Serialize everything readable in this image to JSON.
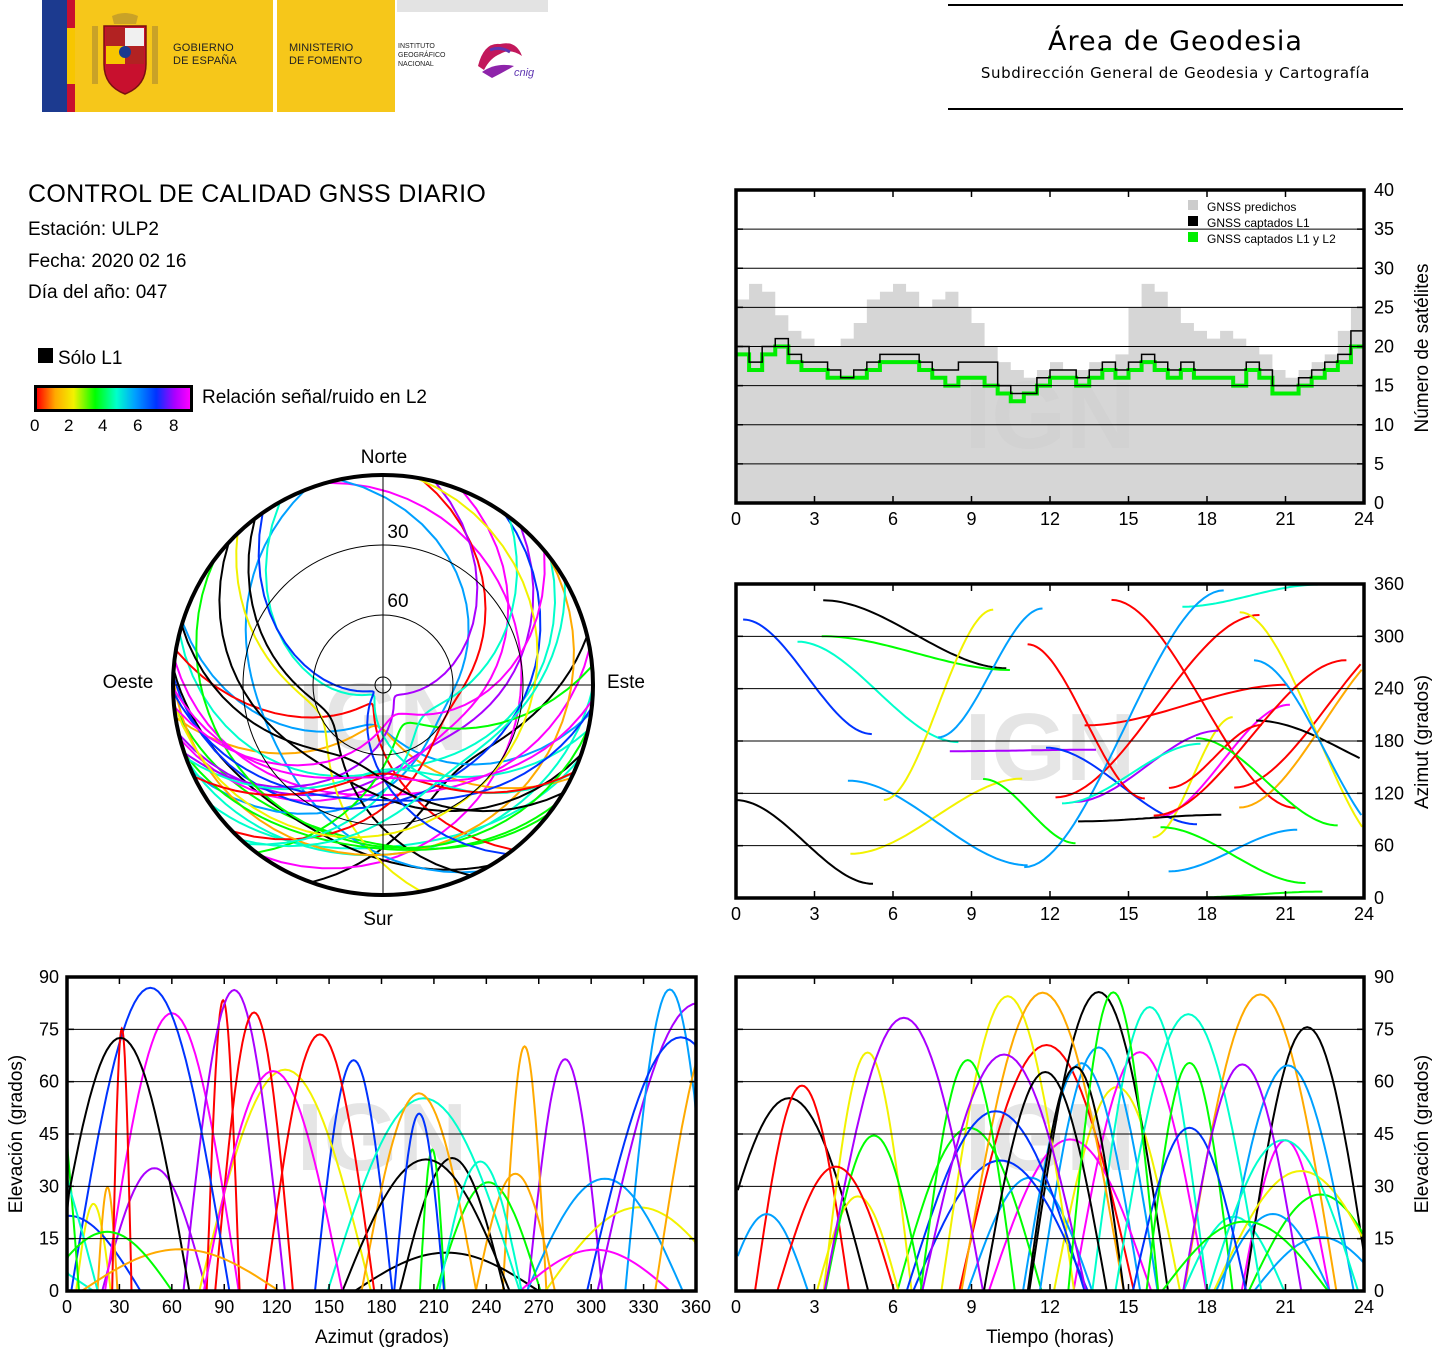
{
  "header": {
    "gov_line1": "GOBIERNO",
    "gov_line2": "DE ESPAÑA",
    "min_line1": "MINISTERIO",
    "min_line2": "DE FOMENTO",
    "ign_line1": "INSTITUTO",
    "ign_line2": "GEOGRÁFICO",
    "ign_line3": "NACIONAL",
    "cnig_logo_text": "cnig",
    "area_title": "Área de Geodesia",
    "area_subtitle": "Subdirección General de Geodesia y Cartografía"
  },
  "report": {
    "title": "CONTROL DE CALIDAD GNSS DIARIO",
    "station": "Estación: ULP2",
    "date": "Fecha: 2020 02 16",
    "doy": "Día del año: 047"
  },
  "legend": {
    "l1_only_label": "Sólo L1",
    "l1_only_color": "#000000",
    "snr_label": "Relación señal/ruido en L2",
    "snr_ticks": [
      "0",
      "2",
      "4",
      "6",
      "8"
    ],
    "snr_scale_colors": [
      "#ff0000",
      "#ffaa00",
      "#f2f200",
      "#00ff00",
      "#00ffcc",
      "#00a0ff",
      "#0033ff",
      "#aa00ff",
      "#ff00ff"
    ]
  },
  "watermark": "IGN",
  "chart_data": [
    {
      "id": "satellites",
      "type": "area",
      "ylabel": "Número de satélites",
      "x_ticks": [
        "0",
        "3",
        "6",
        "9",
        "12",
        "15",
        "18",
        "21",
        "24"
      ],
      "y_ticks": [
        "0",
        "5",
        "10",
        "15",
        "20",
        "25",
        "30",
        "35",
        "40"
      ],
      "xlim": [
        0,
        24
      ],
      "ylim": [
        0,
        40
      ],
      "grid": true,
      "legend_position": "top-right",
      "legend": [
        {
          "label": "GNSS predichos",
          "color": "#cccccc"
        },
        {
          "label": "GNSS captados L1",
          "color": "#000000"
        },
        {
          "label": "GNSS captados L1 y L2",
          "color": "#00ee00"
        }
      ],
      "x": [
        0,
        0.5,
        1,
        1.5,
        2,
        2.5,
        3,
        3.5,
        4,
        4.5,
        5,
        5.5,
        6,
        6.5,
        7,
        7.5,
        8,
        8.5,
        9,
        9.5,
        10,
        10.5,
        11,
        11.5,
        12,
        12.5,
        13,
        13.5,
        14,
        14.5,
        15,
        15.5,
        16,
        16.5,
        17,
        17.5,
        18,
        18.5,
        19,
        19.5,
        20,
        20.5,
        21,
        21.5,
        22,
        22.5,
        23,
        23.5,
        24
      ],
      "series": [
        {
          "name": "GNSS predichos",
          "values": [
            26,
            28,
            27,
            24,
            22,
            21,
            20,
            20,
            21,
            23,
            26,
            27,
            28,
            27,
            25,
            26,
            27,
            25,
            23,
            20,
            18,
            17,
            16,
            17,
            18,
            17,
            17,
            18,
            18,
            19,
            25,
            28,
            27,
            25,
            23,
            22,
            21,
            22,
            21,
            20,
            19,
            17,
            16,
            17,
            18,
            19,
            22,
            25,
            23
          ]
        },
        {
          "name": "GNSS captados L1",
          "values": [
            20,
            18,
            20,
            21,
            19,
            18,
            18,
            17,
            16,
            17,
            18,
            19,
            19,
            19,
            18,
            17,
            17,
            18,
            18,
            18,
            15,
            14,
            14,
            16,
            17,
            17,
            16,
            17,
            18,
            17,
            18,
            19,
            18,
            17,
            18,
            17,
            17,
            17,
            17,
            18,
            17,
            15,
            15,
            16,
            17,
            18,
            19,
            22,
            21
          ]
        },
        {
          "name": "GNSS captados L1 y L2",
          "values": [
            19,
            17,
            19,
            20,
            18,
            17,
            17,
            16,
            16,
            16,
            17,
            18,
            18,
            18,
            17,
            16,
            15,
            16,
            16,
            15,
            14,
            13,
            14,
            15,
            16,
            16,
            15,
            16,
            17,
            16,
            17,
            18,
            17,
            16,
            17,
            16,
            16,
            16,
            15,
            17,
            16,
            14,
            14,
            15,
            16,
            17,
            18,
            20,
            20
          ]
        }
      ]
    },
    {
      "id": "azimuth_time",
      "type": "scatter",
      "ylabel": "Azimut (grados)",
      "x_ticks": [
        "0",
        "3",
        "6",
        "9",
        "12",
        "15",
        "18",
        "21",
        "24"
      ],
      "y_ticks": [
        "0",
        "60",
        "120",
        "180",
        "240",
        "300",
        "360"
      ],
      "xlim": [
        0,
        24
      ],
      "ylim": [
        0,
        360
      ],
      "grid": true
    },
    {
      "id": "skyplot",
      "type": "scatter",
      "directions": {
        "north": "Norte",
        "south": "Sur",
        "east": "Este",
        "west": "Oeste"
      },
      "ring_labels": [
        "30",
        "60"
      ]
    },
    {
      "id": "elevation_azimuth",
      "type": "scatter",
      "xlabel": "Azimut (grados)",
      "ylabel": "Elevación (grados)",
      "x_ticks": [
        "0",
        "30",
        "60",
        "90",
        "120",
        "150",
        "180",
        "210",
        "240",
        "270",
        "300",
        "330",
        "360"
      ],
      "y_ticks": [
        "0",
        "15",
        "30",
        "45",
        "60",
        "75",
        "90"
      ],
      "xlim": [
        0,
        360
      ],
      "ylim": [
        0,
        90
      ],
      "grid": true
    },
    {
      "id": "elevation_time",
      "type": "scatter",
      "xlabel": "Tiempo (horas)",
      "ylabel": "Elevación (grados)",
      "x_ticks": [
        "0",
        "3",
        "6",
        "9",
        "12",
        "15",
        "18",
        "21",
        "24"
      ],
      "y_ticks": [
        "0",
        "15",
        "30",
        "45",
        "60",
        "75",
        "90"
      ],
      "xlim": [
        0,
        24
      ],
      "ylim": [
        0,
        90
      ],
      "grid": true
    }
  ]
}
